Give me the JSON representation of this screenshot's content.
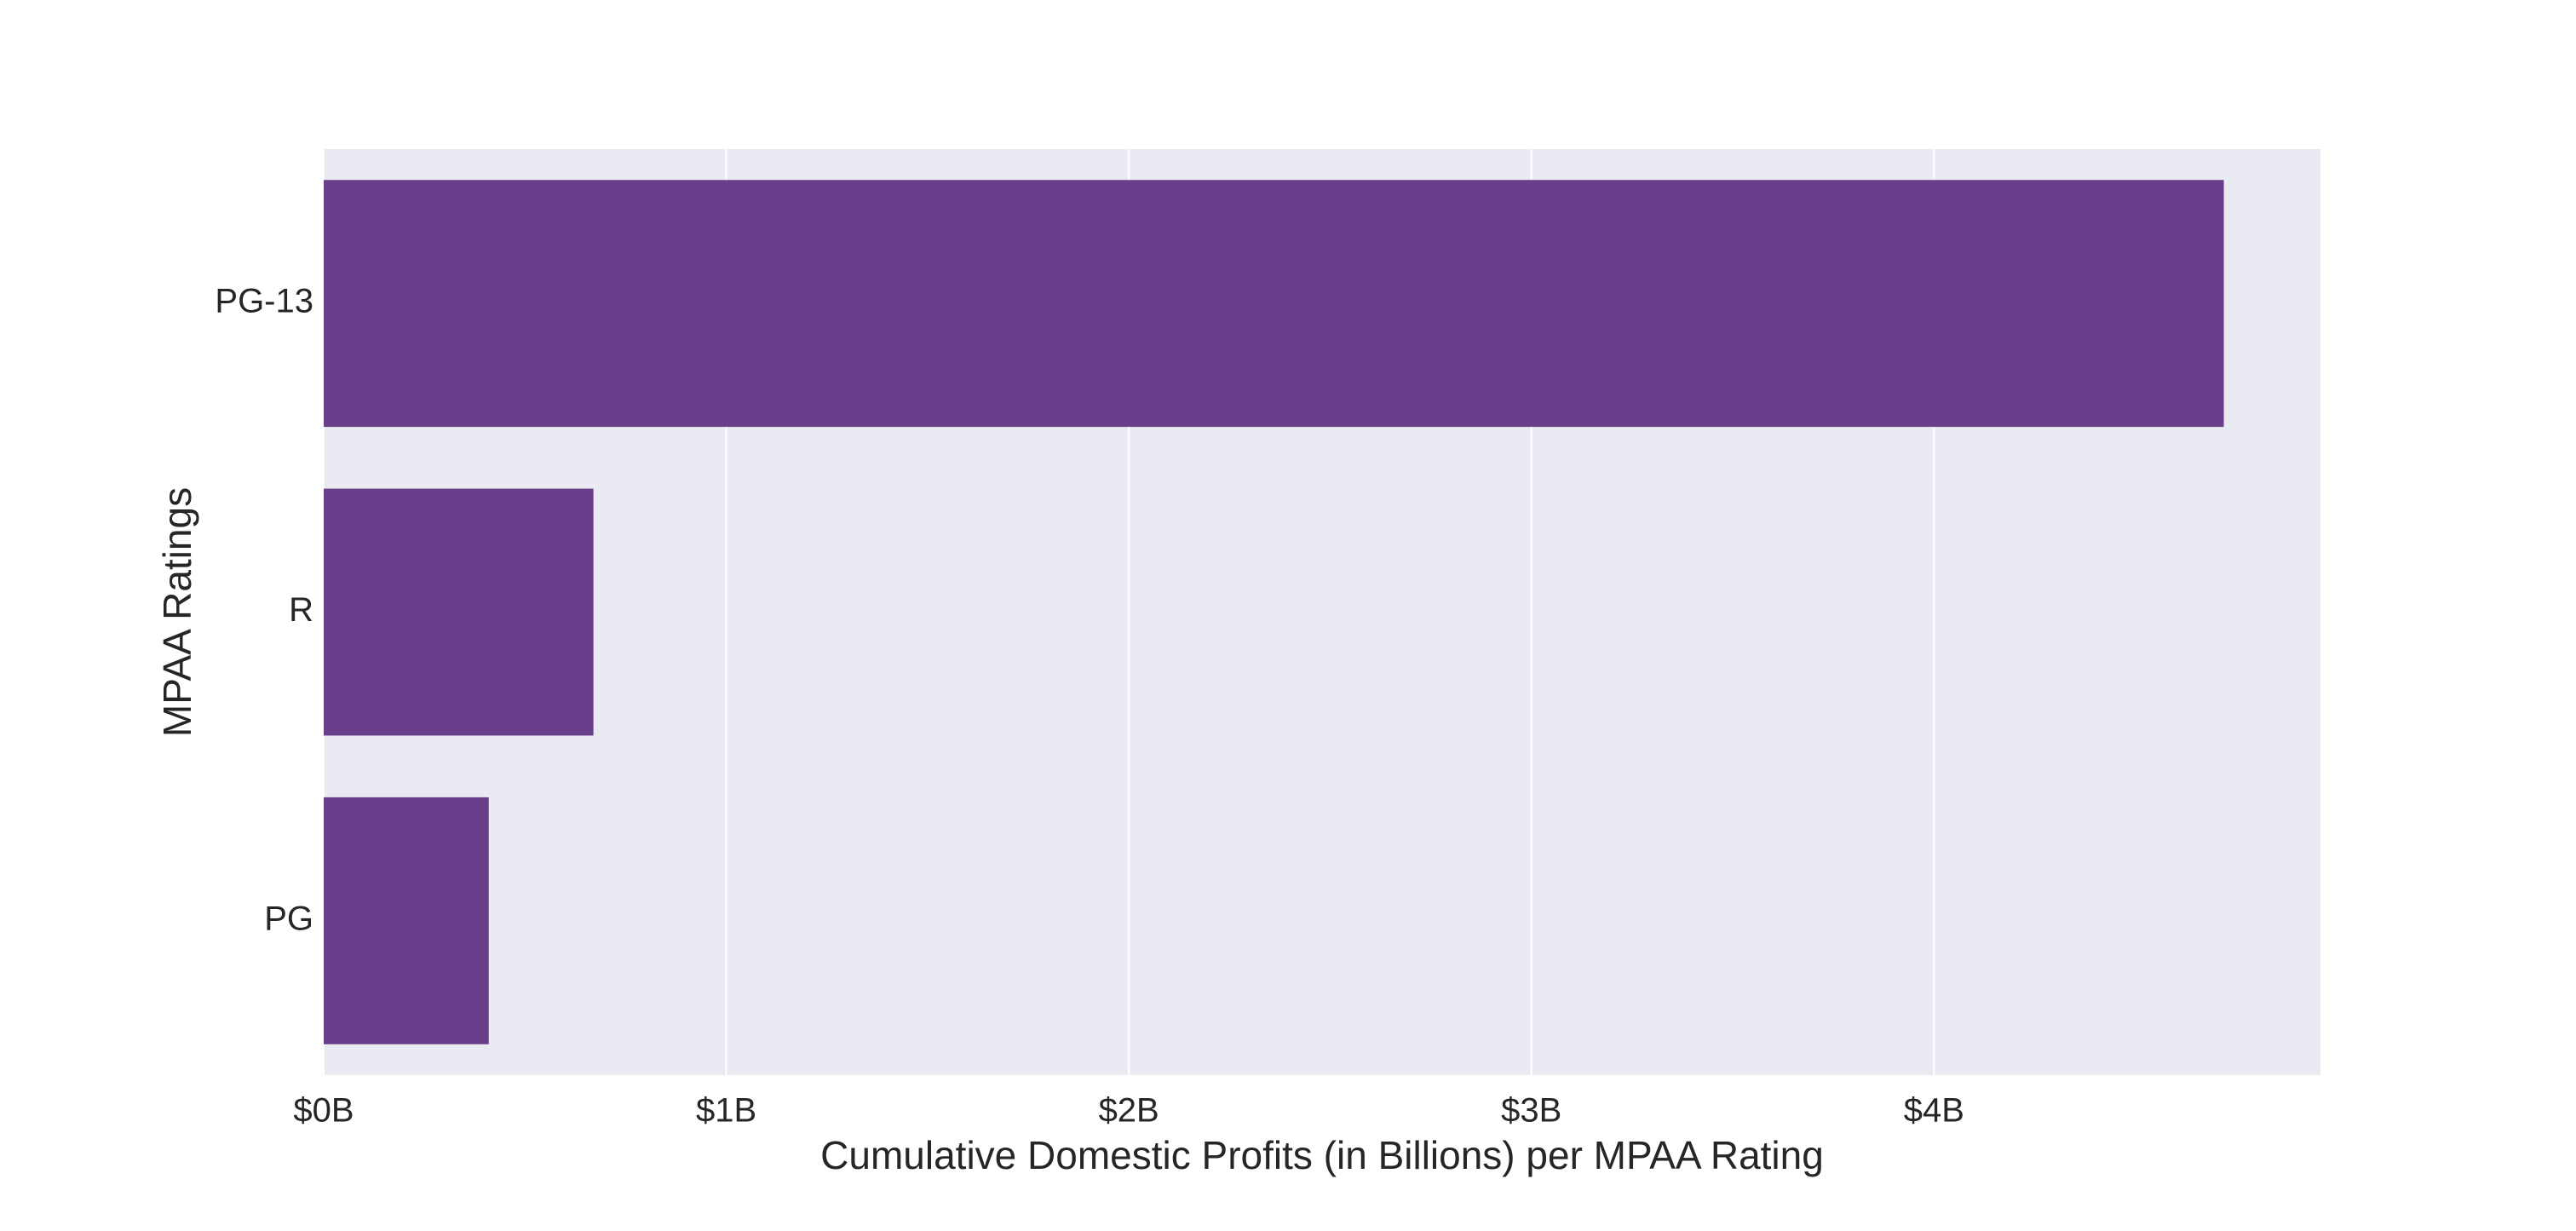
{
  "chart_data": {
    "type": "bar",
    "orientation": "horizontal",
    "title": "",
    "xlabel": "Cumulative Domestic Profits (in Billions) per MPAA Rating",
    "ylabel": "MPAA Ratings",
    "categories": [
      "PG-13",
      "R",
      "PG"
    ],
    "values": [
      4.72,
      0.67,
      0.41
    ],
    "value_unit": "billions USD",
    "xlim": [
      0,
      4.96
    ],
    "x_ticks": [
      0,
      1,
      2,
      3,
      4
    ],
    "x_tick_labels": [
      "$0B",
      "$1B",
      "$2B",
      "$3B",
      "$4B"
    ],
    "grid": "vertical",
    "legend": "none",
    "colors": {
      "bar": "#693f8b",
      "plot_background": "#eaeaf2",
      "grid": "#ffffff",
      "text": "#262626"
    }
  }
}
